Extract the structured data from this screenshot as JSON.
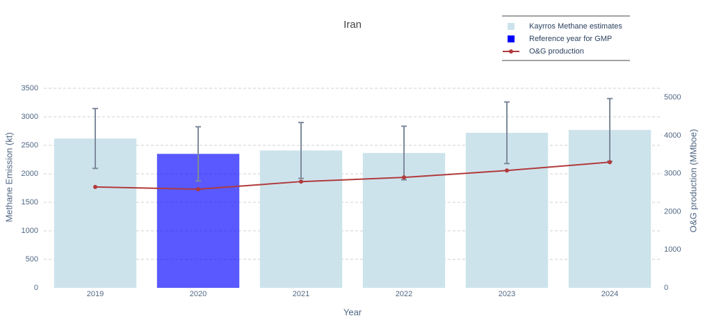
{
  "chart_data": {
    "type": "bar",
    "title": "Iran",
    "x_label": "Year",
    "y_label": "Methane Emission (kt)",
    "y2_label": "O&G production (MMboe)",
    "categories": [
      "2019",
      "2020",
      "2021",
      "2022",
      "2023",
      "2024"
    ],
    "series": [
      {
        "name": "Kayrros Methane estimates",
        "type": "bar",
        "color": "#cde3ec",
        "values": [
          2620,
          2350,
          2410,
          2365,
          2720,
          2770
        ],
        "errors": [
          525,
          475,
          490,
          470,
          540,
          550
        ]
      },
      {
        "name": "O&G production",
        "type": "line",
        "axis": "y2",
        "color": "#b03a3a",
        "values": [
          2650,
          2590,
          2790,
          2900,
          3080,
          3300
        ]
      }
    ],
    "highlight": {
      "name": "Reference year for GMP",
      "category": "2020",
      "color": "#0000ff"
    },
    "error_color": "#7d8a9a",
    "ylim": [
      0,
      3500
    ],
    "yticks": [
      0,
      500,
      1000,
      1500,
      2000,
      2500,
      3000,
      3500
    ],
    "y2lim": [
      0,
      5240
    ],
    "y2ticks": [
      0,
      1000,
      2000,
      3000,
      4000,
      5000
    ],
    "grid": true,
    "legend": "top-right"
  }
}
